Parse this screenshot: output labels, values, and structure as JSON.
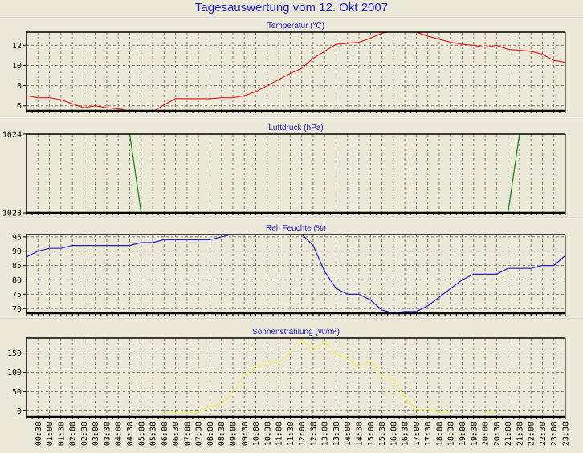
{
  "title": "Tagesauswertung vom 12. Okt 2007",
  "chart_data": {
    "type": "line",
    "x_labels": [
      "00:30",
      "01:00",
      "01:30",
      "02:00",
      "02:30",
      "03:00",
      "03:30",
      "04:00",
      "04:30",
      "05:00",
      "05:30",
      "06:00",
      "06:30",
      "07:00",
      "07:30",
      "08:00",
      "08:30",
      "09:00",
      "09:30",
      "10:00",
      "10:30",
      "11:00",
      "11:30",
      "12:00",
      "12:30",
      "13:00",
      "13:30",
      "14:00",
      "14:30",
      "15:00",
      "15:30",
      "16:00",
      "16:30",
      "17:00",
      "17:30",
      "18:00",
      "18:30",
      "19:00",
      "19:30",
      "20:00",
      "20:30",
      "21:00",
      "21:30",
      "22:00",
      "22:30",
      "23:00",
      "23:30"
    ],
    "x_hours_range": [
      0,
      23.5
    ],
    "x_step_hours": 0.5,
    "grid": true,
    "panels": [
      {
        "title": "Temperatur (°C)",
        "color": "#e02020",
        "ylim": [
          5.5,
          13.3
        ],
        "yticks": [
          6,
          8,
          10,
          12
        ],
        "values": [
          7.0,
          6.8,
          6.8,
          6.6,
          6.2,
          5.8,
          6.0,
          5.8,
          5.7,
          5.5,
          5.3,
          5.4,
          6.1,
          6.7,
          6.7,
          6.7,
          6.7,
          6.8,
          6.8,
          7.0,
          7.4,
          8.0,
          8.6,
          9.2,
          9.7,
          10.7,
          11.4,
          12.1,
          12.2,
          12.3,
          12.7,
          13.2,
          13.4,
          13.5,
          13.3,
          12.9,
          12.6,
          12.3,
          12.1,
          12.0,
          11.8,
          12.0,
          11.6,
          11.5,
          11.4,
          11.1,
          10.5,
          10.3
        ]
      },
      {
        "title": "Luftdruck (hPa)",
        "color": "#108010",
        "ylim": [
          1023,
          1024
        ],
        "yticks": [
          1023,
          1024
        ],
        "values": [
          1024,
          1024,
          1024,
          1024,
          1024,
          1024,
          1024,
          1024,
          1024,
          1024,
          1023,
          1023,
          1023,
          1023,
          1023,
          1023,
          1023,
          1023,
          1023,
          1023,
          1023,
          1023,
          1023,
          1023,
          1023,
          1023,
          1023,
          1023,
          1023,
          1023,
          1023,
          1023,
          1023,
          1023,
          1023,
          1023,
          1023,
          1023,
          1023,
          1023,
          1023,
          1023,
          1023,
          1024,
          1024,
          1024,
          1024,
          1024
        ]
      },
      {
        "title": "Rel. Feuchte (%)",
        "color": "#2020c0",
        "ylim": [
          68.4,
          95.8
        ],
        "yticks": [
          70,
          75,
          80,
          85,
          90,
          95
        ],
        "values": [
          88,
          90,
          91,
          91,
          92,
          92,
          92,
          92,
          92,
          92,
          93,
          93,
          94,
          94,
          94,
          94,
          94,
          95,
          96,
          96,
          96,
          96,
          96,
          96,
          96,
          92,
          83,
          77,
          75,
          75,
          73,
          69.5,
          68.5,
          69,
          69,
          71,
          74,
          77,
          80,
          82,
          82,
          82,
          84,
          84,
          84,
          85,
          85,
          88.5
        ]
      },
      {
        "title": "Sonnenstrahlung (W/m²)",
        "color": "#f0f060",
        "ylim": [
          -16,
          189
        ],
        "yticks": [
          0,
          50,
          100,
          150
        ],
        "values": [
          null,
          null,
          null,
          null,
          null,
          null,
          null,
          null,
          null,
          null,
          null,
          null,
          -3,
          -5,
          -5,
          -3,
          10,
          18,
          45,
          95,
          110,
          125,
          125,
          150,
          185,
          160,
          180,
          148,
          135,
          115,
          130,
          90,
          82,
          35,
          2,
          2,
          -3,
          -5,
          null,
          null,
          -5,
          -3,
          null,
          null,
          null,
          null,
          null,
          null
        ]
      }
    ]
  }
}
